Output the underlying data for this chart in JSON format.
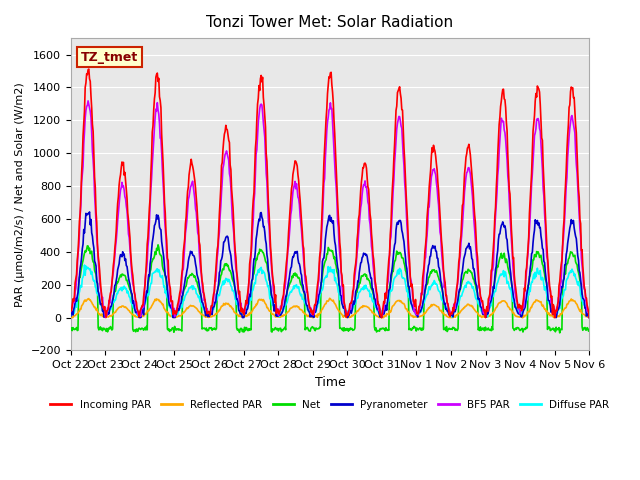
{
  "title": "Tonzi Tower Met: Solar Radiation",
  "ylabel": "PAR (μmol/m2/s) / Net and Solar (W/m2)",
  "xlabel": "Time",
  "ylim": [
    -200,
    1700
  ],
  "yticks": [
    -200,
    0,
    200,
    400,
    600,
    800,
    1000,
    1200,
    1400,
    1600
  ],
  "bg_color": "#e8e8e8",
  "plot_bg": "#f0f0f0",
  "label_box_text": "TZ_tmet",
  "label_box_bg": "#ffffcc",
  "label_box_edge": "#cc2200",
  "series": {
    "incoming_par": {
      "color": "#ff0000",
      "label": "Incoming PAR",
      "lw": 1.2
    },
    "reflected_par": {
      "color": "#ffaa00",
      "label": "Reflected PAR",
      "lw": 1.2
    },
    "net": {
      "color": "#00dd00",
      "label": "Net",
      "lw": 1.2
    },
    "pyranometer": {
      "color": "#0000cc",
      "label": "Pyranometer",
      "lw": 1.2
    },
    "bf5_par": {
      "color": "#cc00ff",
      "label": "BF5 PAR",
      "lw": 1.2
    },
    "diffuse_par": {
      "color": "#00ffff",
      "label": "Diffuse PAR",
      "lw": 1.2
    }
  },
  "x_tick_labels": [
    "Oct 22",
    "Oct 23",
    "Oct 24",
    "Oct 25",
    "Oct 26",
    "Oct 27",
    "Oct 28",
    "Oct 29",
    "Oct 30",
    "Oct 31",
    "Nov 1",
    "Nov 2",
    "Nov 3",
    "Nov 4",
    "Nov 5",
    "Nov 6"
  ],
  "n_days": 15,
  "pts_per_day": 48,
  "incoming_pk": [
    1520,
    930,
    1470,
    940,
    1160,
    1480,
    940,
    1480,
    940,
    1410,
    1040,
    1040,
    1380,
    1410,
    1400
  ],
  "bf5_ratio": 0.87,
  "pyranometer_ratio": 0.42,
  "diffuse_ratio": 0.2,
  "reflected_ratio": 0.075,
  "net_ratio": 0.28,
  "net_night": -70
}
